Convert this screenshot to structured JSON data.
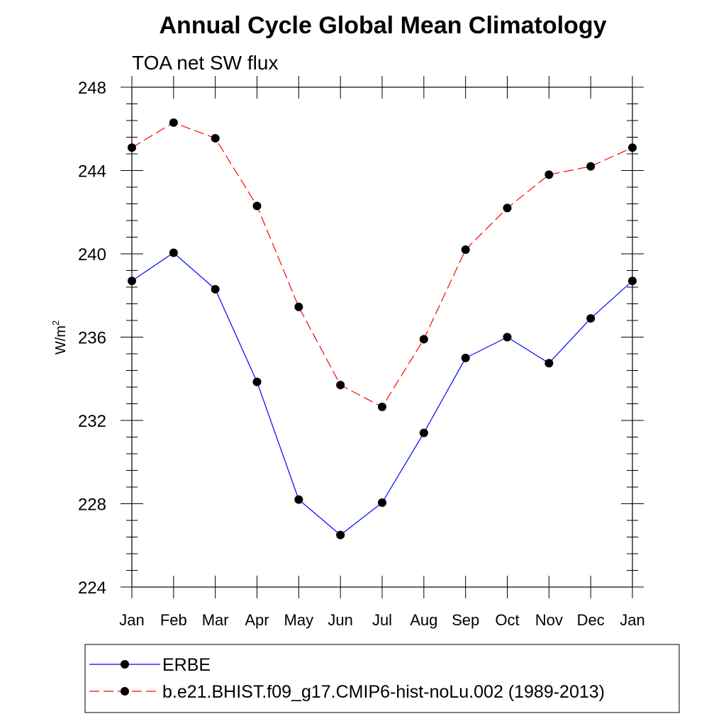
{
  "chart_data": {
    "type": "line",
    "title": "Annual Cycle Global Mean Climatology",
    "subtitle": "TOA net SW flux",
    "ylabel": "W/m",
    "ylabel_sup": "2",
    "categories": [
      "Jan",
      "Feb",
      "Mar",
      "Apr",
      "May",
      "Jun",
      "Jul",
      "Aug",
      "Sep",
      "Oct",
      "Nov",
      "Dec",
      "Jan"
    ],
    "ylim": [
      224,
      248
    ],
    "yticks": [
      224,
      228,
      232,
      236,
      240,
      244,
      248
    ],
    "grid": false,
    "legend_placement": "bottom",
    "series": [
      {
        "name": "ERBE",
        "color": "#0000ff",
        "dash": "solid",
        "values": [
          238.7,
          240.05,
          238.3,
          233.85,
          228.2,
          226.5,
          228.05,
          231.4,
          235.0,
          236.0,
          234.75,
          236.9,
          238.7
        ]
      },
      {
        "name": "b.e21.BHIST.f09_g17.CMIP6-hist-noLu.002 (1989-2013)",
        "color": "#ff0000",
        "dash": "dashed",
        "values": [
          245.1,
          246.3,
          245.55,
          242.3,
          237.45,
          233.7,
          232.65,
          235.9,
          240.2,
          242.2,
          243.8,
          244.2,
          245.1
        ]
      }
    ]
  }
}
